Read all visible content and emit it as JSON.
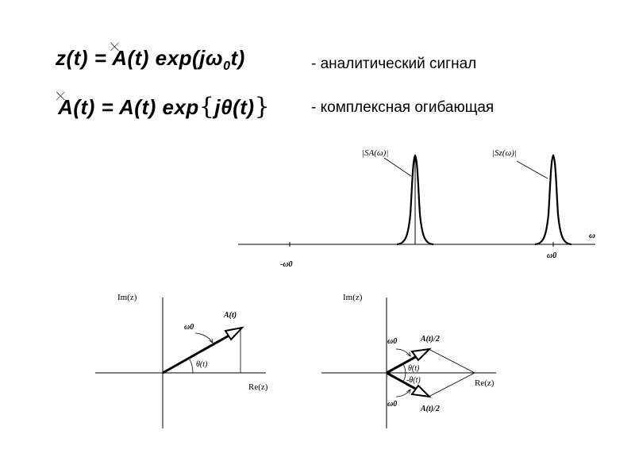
{
  "formulas": {
    "analytic": {
      "text": "z(t) = A(t) exp(jω0t)",
      "description": "-  аналитический сигнал"
    },
    "envelope": {
      "text": "A(t) = A(t) exp{jθ(t)}",
      "description": "-  комплексная огибающая"
    },
    "glyph": "🞨"
  },
  "spectrum": {
    "axis_label": "ω",
    "left_tick_label": "-ω0",
    "right_tick_label": "ω0",
    "left_peak_label": "|SA(ω)|",
    "right_peak_label": "|Sz(ω)|"
  },
  "phasor_left": {
    "y_label": "Im(z)",
    "x_label": "Re(z)",
    "vector_label": "A(t)",
    "rotation_label": "ω0",
    "angle_label": "θ(t)"
  },
  "phasor_right": {
    "y_label": "Im(z)",
    "x_label": "Re(z)",
    "upper_vector_label": "A(t)/2",
    "lower_vector_label": "A(t)/2",
    "upper_rotation_label": "ω0",
    "lower_rotation_label": "ω0",
    "upper_angle_label": "θ(t)",
    "lower_angle_label": "-θ(t)"
  }
}
